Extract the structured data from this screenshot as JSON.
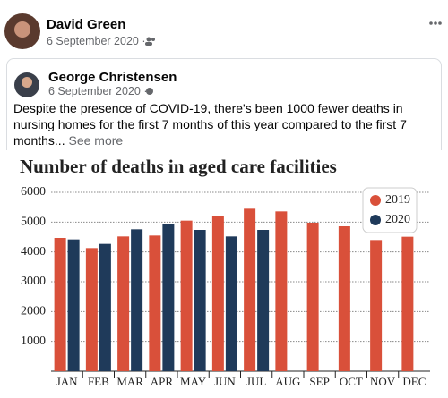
{
  "post": {
    "author": "David Green",
    "date": "6 September 2020 ·",
    "shared": {
      "author": "George Christensen",
      "date": "6 September 2020 ·",
      "text": "Despite the presence of COVID-19, there's been 1000 fewer deaths in nursing homes for the first 7 months of this year compared to the first 7 months...",
      "more": "See more"
    }
  },
  "chart_data": {
    "type": "bar",
    "title": "Number of deaths in aged care facilities",
    "categories": [
      "JAN",
      "FEB",
      "MAR",
      "APR",
      "MAY",
      "JUN",
      "JUL",
      "AUG",
      "SEP",
      "OCT",
      "NOV",
      "DEC"
    ],
    "series": [
      {
        "name": "2019",
        "color": "#d9503a",
        "values": [
          4470,
          4130,
          4520,
          4550,
          5050,
          5200,
          5450,
          5360,
          4980,
          4860,
          4400,
          4510
        ]
      },
      {
        "name": "2020",
        "color": "#1f3a5a",
        "values": [
          4420,
          4270,
          4760,
          4930,
          4740,
          4520,
          4740,
          null,
          null,
          null,
          null,
          null
        ]
      }
    ],
    "ylim": [
      0,
      6000
    ],
    "yticks": [
      1000,
      2000,
      3000,
      4000,
      5000,
      6000
    ],
    "grid": true,
    "legend": "top-right"
  }
}
